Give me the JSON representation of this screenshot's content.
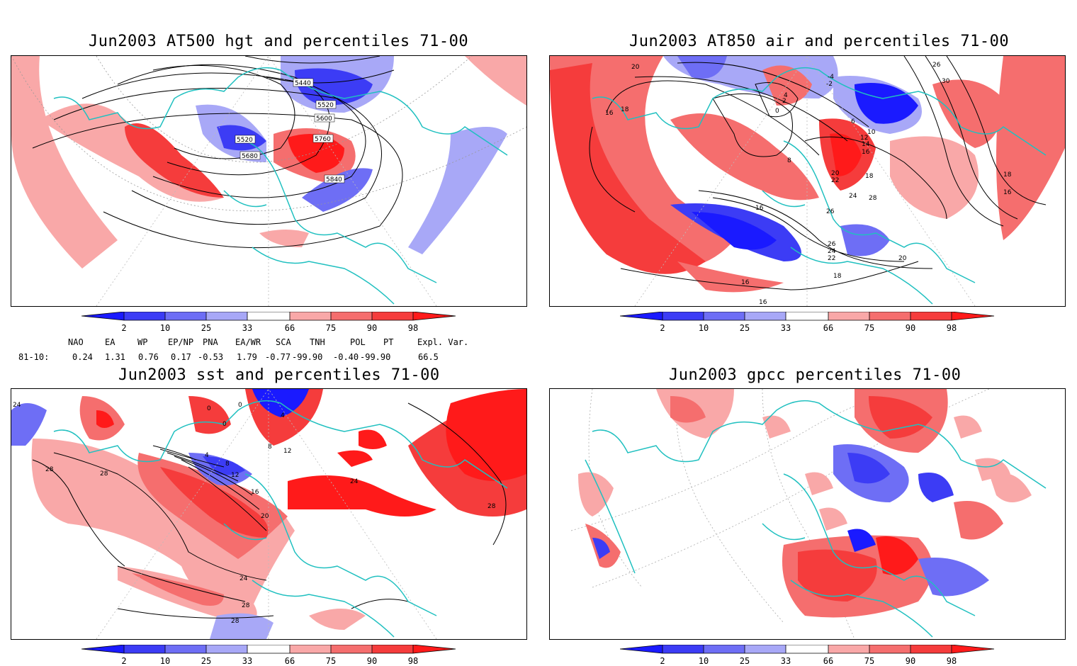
{
  "panels": [
    {
      "title": "Jun2003 AT500 hgt and percentiles 71-00",
      "contour_labels": [
        "5440",
        "5520",
        "5600",
        "5520",
        "5680",
        "5760",
        "5840"
      ]
    },
    {
      "title": "Jun2003 AT850 air and percentiles 71-00",
      "contour_labels": [
        "20",
        "18",
        "16",
        "4",
        "2",
        "0",
        "-2",
        "-4",
        "6",
        "8",
        "10",
        "12",
        "14",
        "16",
        "18",
        "20",
        "22",
        "24",
        "26",
        "28",
        "26",
        "30",
        "18",
        "16",
        "16",
        "26",
        "24",
        "22",
        "20",
        "18",
        "16",
        "16"
      ]
    },
    {
      "title": "Jun2003 sst and percentiles 71-00",
      "contour_labels": [
        "24",
        "28",
        "28",
        "0",
        "0",
        "0",
        "4",
        "8",
        "12",
        "4",
        "8",
        "12",
        "16",
        "20",
        "24",
        "28",
        "28",
        "28",
        "24"
      ]
    },
    {
      "title": "Jun2003 gpcc percentiles 71-00",
      "contour_labels": []
    }
  ],
  "colorbar": {
    "labels": [
      "2",
      "10",
      "25",
      "33",
      "66",
      "75",
      "90",
      "98"
    ],
    "colors": [
      "#1a1aff",
      "#3c3cf5",
      "#6e6ef5",
      "#a8a8f7",
      "#ffffff",
      "#f9a8a8",
      "#f56e6e",
      "#f53c3c",
      "#ff1a1a"
    ]
  },
  "stats": {
    "headers": [
      "NAO",
      "EA",
      "WP",
      "EP/NP",
      "PNA",
      "EA/WR",
      "SCA",
      "TNH",
      "POL",
      "PT",
      "Expl. Var."
    ],
    "row_label": "81-10:",
    "values": [
      "0.24",
      "1.31",
      "0.76",
      "0.17",
      "-0.53",
      "1.79",
      "-0.77",
      "-99.90",
      "-0.40",
      "-99.90",
      "66.5"
    ]
  }
}
